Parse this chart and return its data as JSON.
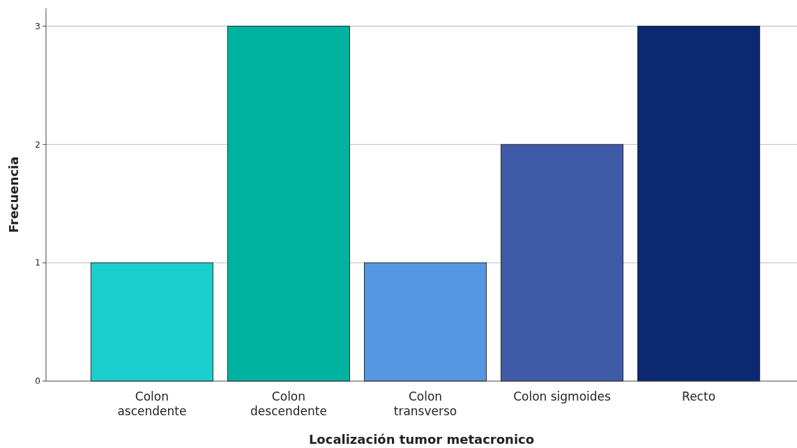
{
  "chart_data": {
    "type": "bar",
    "xlabel": "Localización tumor metacronico",
    "ylabel": "Frecuencia",
    "categories": [
      "Colon ascendente",
      "Colon descendente",
      "Colon transverso",
      "Colon sigmoides",
      "Recto"
    ],
    "values": [
      1,
      3,
      1,
      2,
      3
    ],
    "colors": [
      "#1ccfcf",
      "#00b2a0",
      "#5597e3",
      "#3f5aa8",
      "#0b2870"
    ],
    "ylim": [
      0,
      3.15
    ],
    "yticks": [
      0,
      1,
      2,
      3
    ],
    "grid": "y"
  }
}
